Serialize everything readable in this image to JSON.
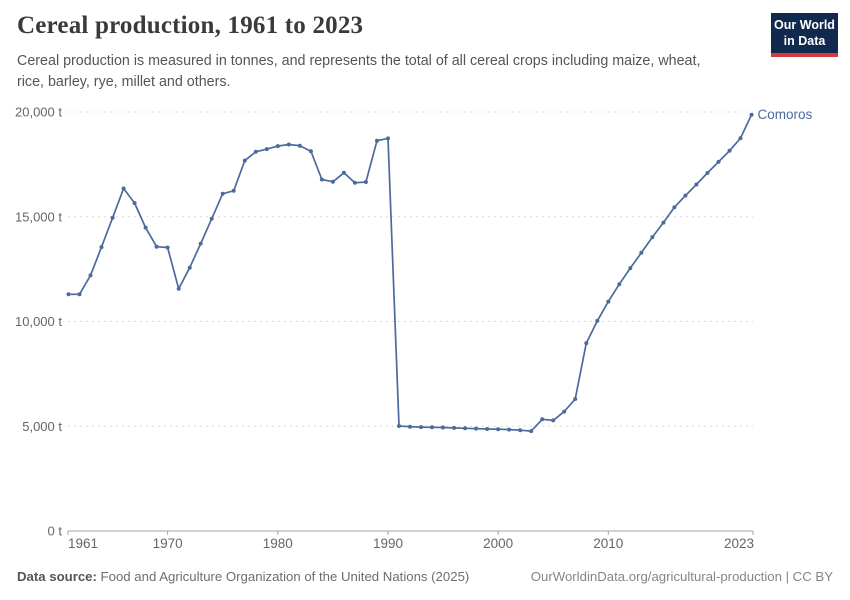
{
  "header": {
    "title": "Cereal production, 1961 to 2023",
    "subtitle_line1": "Cereal production is measured in tonnes, and represents the total of all cereal crops including maize, wheat,",
    "subtitle_line2": "rice, barley, rye, millet and others.",
    "logo": {
      "line1": "Our World",
      "line2": "in Data",
      "bg_color": "#12294e",
      "accent_color": "#d43a3f"
    }
  },
  "chart_data": {
    "type": "line",
    "title": "Cereal production, 1961 to 2023",
    "entity_label": "Comoros",
    "unit": "t",
    "line_color": "#4C6A9C",
    "grid": "dashed-horizontal",
    "legend_position": "end-of-line-label",
    "xlim": [
      1961,
      2023
    ],
    "ylim": [
      0,
      20000
    ],
    "x_tick_labels": [
      "1961",
      "1970",
      "1980",
      "1990",
      "2000",
      "2010",
      "2023"
    ],
    "x_tick_years": [
      1961,
      1970,
      1980,
      1990,
      2000,
      2010,
      2023
    ],
    "y_ticks": [
      {
        "value": 0,
        "label": "0 t"
      },
      {
        "value": 5000,
        "label": "5,000 t"
      },
      {
        "value": 10000,
        "label": "10,000 t"
      },
      {
        "value": 15000,
        "label": "15,000 t"
      },
      {
        "value": 20000,
        "label": "20,000 t"
      }
    ],
    "years": [
      1961,
      1962,
      1963,
      1964,
      1965,
      1966,
      1967,
      1968,
      1969,
      1970,
      1971,
      1972,
      1973,
      1974,
      1975,
      1976,
      1977,
      1978,
      1979,
      1980,
      1981,
      1982,
      1983,
      1984,
      1985,
      1986,
      1987,
      1988,
      1989,
      1990,
      1991,
      1992,
      1993,
      1994,
      1995,
      1996,
      1997,
      1998,
      1999,
      2000,
      2001,
      2002,
      2003,
      2004,
      2005,
      2006,
      2007,
      2008,
      2009,
      2010,
      2011,
      2012,
      2013,
      2014,
      2015,
      2016,
      2017,
      2018,
      2019,
      2020,
      2021,
      2022,
      2023
    ],
    "series": [
      {
        "name": "Comoros",
        "color": "#4C6A9C",
        "values": [
          11300,
          11300,
          12200,
          13550,
          14950,
          16350,
          15650,
          14480,
          13570,
          13530,
          11560,
          12570,
          13720,
          14900,
          16100,
          16240,
          17680,
          18100,
          18230,
          18370,
          18450,
          18390,
          18130,
          16780,
          16670,
          17100,
          16620,
          16660,
          18630,
          18740,
          5010,
          4980,
          4960,
          4950,
          4940,
          4920,
          4900,
          4890,
          4870,
          4860,
          4840,
          4810,
          4770,
          5330,
          5280,
          5700,
          6300,
          8970,
          10030,
          10950,
          11780,
          12550,
          13280,
          14030,
          14720,
          15450,
          16010,
          16540,
          17090,
          17620,
          18150,
          18750,
          19870
        ]
      }
    ],
    "axis_color": "#a5a5a5",
    "grid_color": "#dcdcdc",
    "tick_label_color": "#666666"
  },
  "footer": {
    "source_label": "Data source:",
    "source_text": " Food and Agriculture Organization of the United Nations (2025)",
    "link_text": "OurWorldinData.org/agricultural-production | CC BY"
  }
}
